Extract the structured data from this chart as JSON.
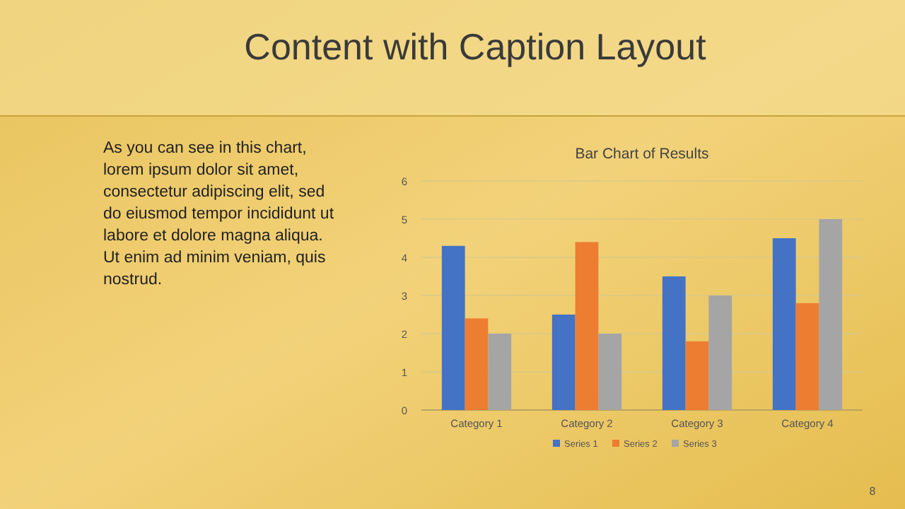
{
  "chart_data": [
    {
      "type": "other",
      "title": "Content with Caption Layout",
      "annotations": [
        "As you can see in this chart, lorem ipsum dolor sit amet, consectetur adipiscing elit, sed do eiusmod tempor incididunt ut labore et dolore magna aliqua. Ut enim ad minim veniam, quis nostrud.",
        "8"
      ]
    },
    {
      "type": "bar",
      "title": "Bar Chart of Results",
      "categories": [
        "Category 1",
        "Category 2",
        "Category 3",
        "Category 4"
      ],
      "series": [
        {
          "name": "Series 1",
          "color": "#4472c4",
          "values": [
            4.3,
            2.5,
            3.5,
            4.5
          ]
        },
        {
          "name": "Series 2",
          "color": "#ed7d31",
          "values": [
            2.4,
            4.4,
            1.8,
            2.8
          ]
        },
        {
          "name": "Series 3",
          "color": "#a5a5a5",
          "values": [
            2,
            2,
            3,
            5
          ]
        }
      ],
      "ylim": [
        0,
        6
      ],
      "yticks": [
        0,
        1,
        2,
        3,
        4,
        5,
        6
      ],
      "grid": true,
      "legend": "bottom"
    }
  ]
}
